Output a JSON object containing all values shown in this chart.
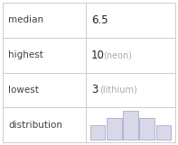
{
  "rows": [
    {
      "label": "median",
      "value": "6.5",
      "note": ""
    },
    {
      "label": "highest",
      "value": "10",
      "note": "(neon)"
    },
    {
      "label": "lowest",
      "value": "3",
      "note": "(lithium)"
    },
    {
      "label": "distribution",
      "value": "",
      "note": ""
    }
  ],
  "bar_heights": [
    2,
    3,
    4,
    3,
    2
  ],
  "bar_color": "#d8d8e8",
  "bar_edge_color": "#aaaacc",
  "table_line_color": "#cccccc",
  "background_color": "#ffffff",
  "text_color": "#404040",
  "value_color": "#222222",
  "note_color": "#aaaaaa",
  "label_fontsize": 7.5,
  "value_fontsize": 8.5,
  "note_fontsize": 7.0
}
